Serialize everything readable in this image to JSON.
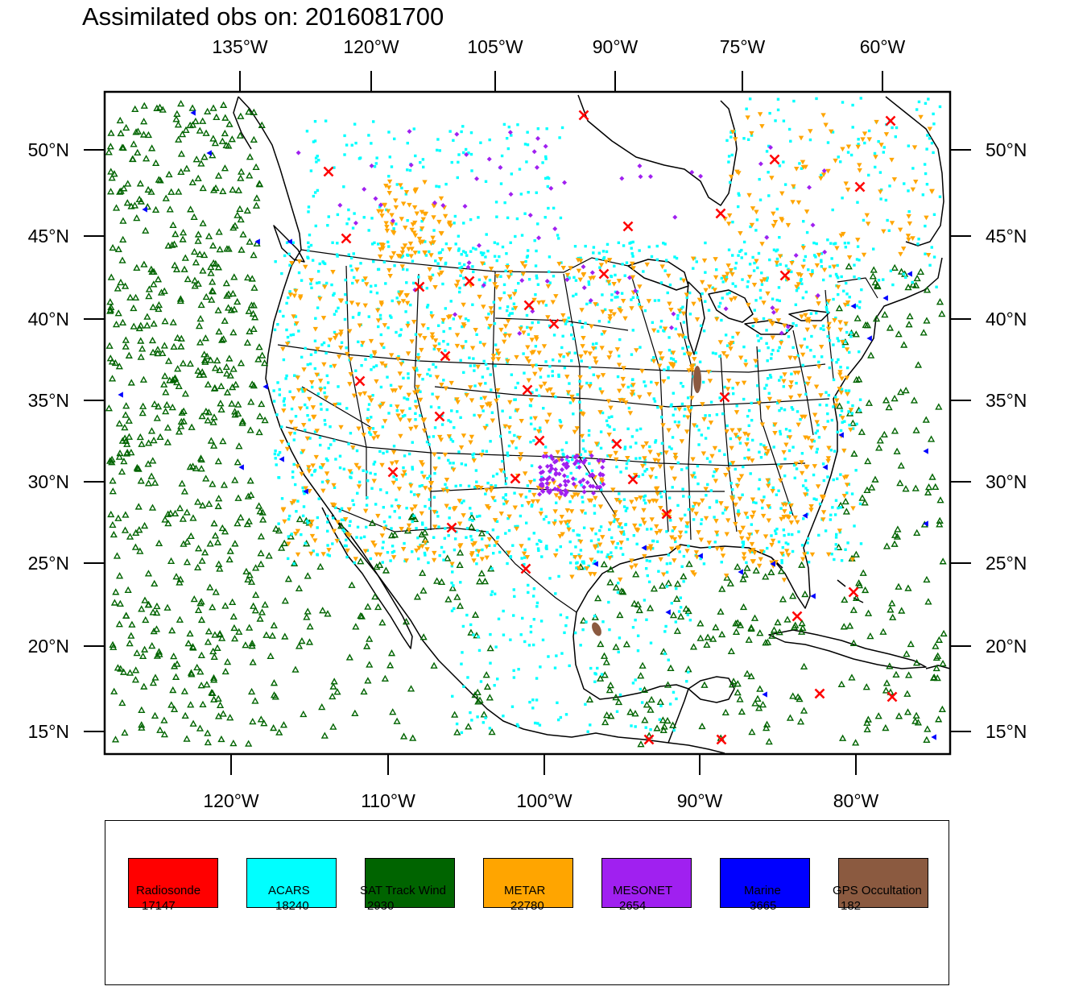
{
  "title": {
    "label": "Assimilated obs on:",
    "datetime": "2016081700"
  },
  "map": {
    "top_lon_ticks": [
      "135°W",
      "120°W",
      "105°W",
      "90°W",
      "75°W",
      "60°W"
    ],
    "bottom_lon_ticks": [
      "120°W",
      "110°W",
      "100°W",
      "90°W",
      "80°W"
    ],
    "lat_ticks": [
      "50°N",
      "45°N",
      "40°N",
      "35°N",
      "30°N",
      "25°N",
      "20°N",
      "15°N"
    ]
  },
  "legend": [
    {
      "name": "Radiosonde",
      "count": "17147",
      "color": "#ff0000",
      "marker": "x-mark"
    },
    {
      "name": "ACARS",
      "count": "18240",
      "color": "#00ffff",
      "marker": "square-dot"
    },
    {
      "name": "SAT Track Wind",
      "count": "2930",
      "color": "#006400",
      "marker": "triangle-up"
    },
    {
      "name": "METAR",
      "count": "22780",
      "color": "#ffa500",
      "marker": "triangle-down"
    },
    {
      "name": "MESONET",
      "count": "2654",
      "color": "#a020f0",
      "marker": "diamond"
    },
    {
      "name": "Marine",
      "count": "3665",
      "color": "#0000ff",
      "marker": "triangle-left"
    },
    {
      "name": "GPS Occultation",
      "count": "182",
      "color": "#8b5a40",
      "marker": "ellipse"
    }
  ]
}
